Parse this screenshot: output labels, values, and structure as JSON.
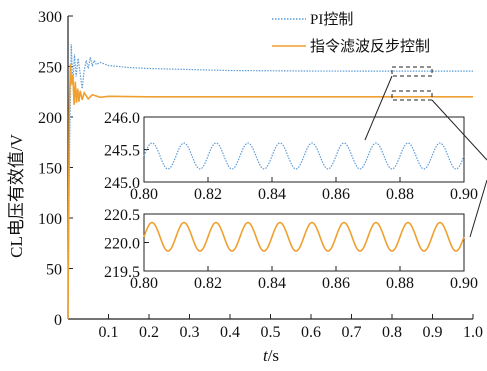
{
  "chart_data": {
    "type": "line",
    "xlabel_italic": "t",
    "xlabel_unit": "/s",
    "ylabel": "CL电压有效值/V",
    "xlim": [
      0,
      1.0
    ],
    "ylim": [
      0,
      300
    ],
    "xticks": [
      "0.1",
      "0.2",
      "0.3",
      "0.4",
      "0.5",
      "0.6",
      "0.7",
      "0.8",
      "0.9",
      "1.0"
    ],
    "yticks": [
      "0",
      "50",
      "100",
      "150",
      "200",
      "250",
      "300"
    ],
    "legend_position": "top-right",
    "series": [
      {
        "name": "PI控制",
        "color": "#5b9bd5",
        "style": "dotted",
        "x": [
          0,
          0.004,
          0.008,
          0.012,
          0.016,
          0.02,
          0.025,
          0.03,
          0.035,
          0.04,
          0.045,
          0.05,
          0.055,
          0.06,
          0.065,
          0.07,
          0.08,
          0.1,
          0.15,
          0.2,
          0.3,
          0.4,
          0.6,
          0.8,
          1.0
        ],
        "y": [
          0,
          170,
          272,
          232,
          262,
          240,
          258,
          243,
          228,
          246,
          256,
          248,
          259,
          251,
          256,
          252,
          254,
          251,
          249,
          248,
          247,
          246,
          245.5,
          245.4,
          245.4
        ]
      },
      {
        "name": "指令滤波反步控制",
        "color": "#f0a030",
        "style": "solid",
        "x": [
          0,
          0.003,
          0.006,
          0.009,
          0.012,
          0.015,
          0.018,
          0.021,
          0.024,
          0.027,
          0.03,
          0.035,
          0.04,
          0.05,
          0.06,
          0.08,
          0.1,
          0.2,
          0.4,
          0.6,
          0.8,
          1.0
        ],
        "y": [
          0,
          205,
          252,
          232,
          242,
          212,
          235,
          214,
          228,
          215,
          226,
          217,
          224,
          218,
          222,
          219.5,
          220.5,
          220,
          220,
          220,
          220,
          220
        ]
      }
    ],
    "inset_top": {
      "xlim": [
        0.8,
        0.9
      ],
      "ylim": [
        245.0,
        246.0
      ],
      "xticks": [
        "0.80",
        "0.82",
        "0.84",
        "0.86",
        "0.88",
        "0.90"
      ],
      "yticks": [
        "245.0",
        "245.5",
        "246.0"
      ],
      "series": "PI控制",
      "mean": 245.4,
      "amplitude": 0.2,
      "cycles": 10
    },
    "inset_bottom": {
      "xlim": [
        0.8,
        0.9
      ],
      "ylim": [
        219.5,
        220.5
      ],
      "xticks": [
        "0.80",
        "0.82",
        "0.84",
        "0.86",
        "0.88",
        "0.90"
      ],
      "yticks": [
        "219.5",
        "220.0",
        "220.5"
      ],
      "series": "指令滤波反步控制",
      "mean": 220.1,
      "amplitude": 0.25,
      "cycles": 10
    }
  }
}
